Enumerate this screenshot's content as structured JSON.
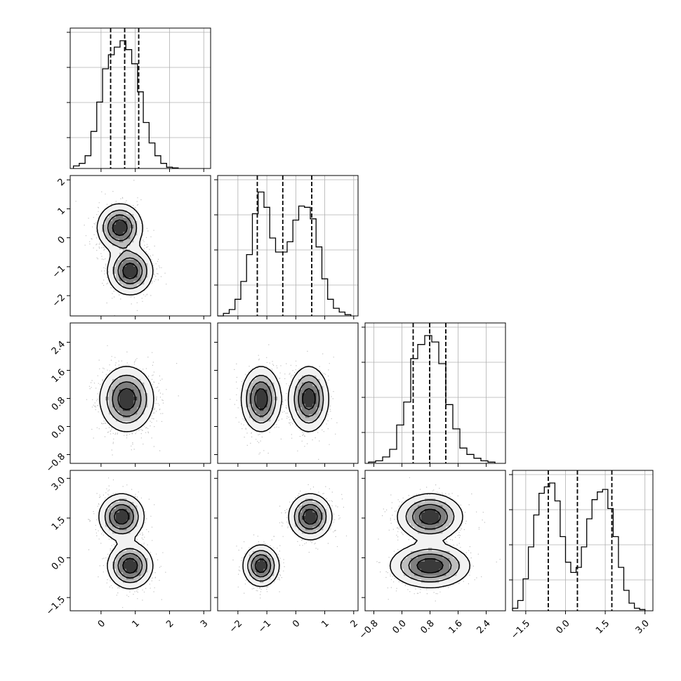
{
  "chart_data": {
    "type": "corner",
    "title": "",
    "n_params": 4,
    "axis_ranges": [
      [
        -0.9,
        3.2
      ],
      [
        -2.7,
        2.15
      ],
      [
        -1.05,
        2.95
      ],
      [
        -2.0,
        3.3
      ]
    ],
    "ticks": [
      {
        "values": [
          0,
          1,
          2,
          3
        ],
        "labels": [
          "0",
          "1",
          "2",
          "3"
        ]
      },
      {
        "values": [
          -2,
          -1,
          0,
          1,
          2
        ],
        "labels": [
          "−2",
          "−1",
          "0",
          "1",
          "2"
        ]
      },
      {
        "values": [
          -0.8,
          0.0,
          0.8,
          1.6,
          2.4
        ],
        "labels": [
          "−0.8",
          "0.0",
          "0.8",
          "1.6",
          "2.4"
        ]
      },
      {
        "values": [
          -1.5,
          0.0,
          1.5,
          3.0
        ],
        "labels": [
          "−1.5",
          "0.0",
          "1.5",
          "3.0"
        ]
      }
    ],
    "grid": true,
    "histograms": [
      {
        "param": 0,
        "quantiles": [
          0.28,
          0.69,
          1.1
        ],
        "bins": [
          [
            -0.72,
            0.02
          ],
          [
            -0.55,
            0.04
          ],
          [
            -0.38,
            0.1
          ],
          [
            -0.21,
            0.29
          ],
          [
            -0.04,
            0.52
          ],
          [
            0.13,
            0.78
          ],
          [
            0.3,
            0.89
          ],
          [
            0.47,
            0.95
          ],
          [
            0.64,
            1.0
          ],
          [
            0.81,
            0.93
          ],
          [
            0.98,
            0.82
          ],
          [
            1.15,
            0.6
          ],
          [
            1.32,
            0.36
          ],
          [
            1.49,
            0.2
          ],
          [
            1.66,
            0.1
          ],
          [
            1.83,
            0.04
          ],
          [
            2.0,
            0.01
          ],
          [
            2.17,
            0.005
          ]
        ]
      },
      {
        "param": 1,
        "quantiles": [
          -1.33,
          -0.45,
          0.55
        ],
        "bins": [
          [
            -2.6,
            0.0
          ],
          [
            -2.4,
            0.02
          ],
          [
            -2.2,
            0.05
          ],
          [
            -2.0,
            0.13
          ],
          [
            -1.8,
            0.27
          ],
          [
            -1.6,
            0.48
          ],
          [
            -1.4,
            0.8
          ],
          [
            -1.2,
            0.97
          ],
          [
            -1.0,
            0.85
          ],
          [
            -0.8,
            0.61
          ],
          [
            -0.6,
            0.5
          ],
          [
            -0.4,
            0.5
          ],
          [
            -0.2,
            0.58
          ],
          [
            0.0,
            0.75
          ],
          [
            0.2,
            0.86
          ],
          [
            0.4,
            0.85
          ],
          [
            0.6,
            0.76
          ],
          [
            0.8,
            0.54
          ],
          [
            1.0,
            0.29
          ],
          [
            1.2,
            0.13
          ],
          [
            1.4,
            0.06
          ],
          [
            1.6,
            0.03
          ],
          [
            1.8,
            0.01
          ]
        ]
      },
      {
        "param": 2,
        "quantiles": [
          0.32,
          0.79,
          1.25
        ],
        "bins": [
          [
            -0.85,
            0.01
          ],
          [
            -0.65,
            0.02
          ],
          [
            -0.45,
            0.05
          ],
          [
            -0.25,
            0.11
          ],
          [
            -0.05,
            0.3
          ],
          [
            0.15,
            0.48
          ],
          [
            0.35,
            0.82
          ],
          [
            0.55,
            0.93
          ],
          [
            0.75,
            1.0
          ],
          [
            0.95,
            0.95
          ],
          [
            1.15,
            0.78
          ],
          [
            1.35,
            0.46
          ],
          [
            1.55,
            0.27
          ],
          [
            1.75,
            0.12
          ],
          [
            1.95,
            0.07
          ],
          [
            2.15,
            0.04
          ],
          [
            2.35,
            0.02
          ],
          [
            2.55,
            0.01
          ]
        ]
      },
      {
        "param": 3,
        "quantiles": [
          -0.65,
          0.45,
          1.75
        ],
        "bins": [
          [
            -1.9,
            0.02
          ],
          [
            -1.7,
            0.08
          ],
          [
            -1.5,
            0.25
          ],
          [
            -1.3,
            0.5
          ],
          [
            -1.1,
            0.75
          ],
          [
            -0.9,
            0.92
          ],
          [
            -0.7,
            0.97
          ],
          [
            -0.5,
            1.0
          ],
          [
            -0.3,
            0.86
          ],
          [
            -0.1,
            0.58
          ],
          [
            0.1,
            0.38
          ],
          [
            0.3,
            0.3
          ],
          [
            0.5,
            0.34
          ],
          [
            0.7,
            0.5
          ],
          [
            0.9,
            0.72
          ],
          [
            1.1,
            0.87
          ],
          [
            1.3,
            0.93
          ],
          [
            1.5,
            0.95
          ],
          [
            1.7,
            0.8
          ],
          [
            1.9,
            0.58
          ],
          [
            2.1,
            0.34
          ],
          [
            2.3,
            0.16
          ],
          [
            2.5,
            0.06
          ],
          [
            2.7,
            0.02
          ],
          [
            2.9,
            0.01
          ]
        ]
      }
    ],
    "joint": [
      {
        "x": 0,
        "y": 1,
        "modes": [
          {
            "mx": 0.55,
            "my": 0.35,
            "sx": 0.32,
            "sy": 0.4,
            "w": 0.5
          },
          {
            "mx": 0.85,
            "my": -1.15,
            "sx": 0.32,
            "sy": 0.4,
            "w": 0.5
          }
        ]
      },
      {
        "x": 0,
        "y": 2,
        "modes": [
          {
            "mx": 0.75,
            "my": 0.78,
            "sx": 0.38,
            "sy": 0.45,
            "w": 1.0
          }
        ]
      },
      {
        "x": 1,
        "y": 2,
        "modes": [
          {
            "mx": -1.2,
            "my": 0.78,
            "sx": 0.33,
            "sy": 0.45,
            "w": 0.5
          },
          {
            "mx": 0.45,
            "my": 0.78,
            "sx": 0.33,
            "sy": 0.45,
            "w": 0.5
          }
        ]
      },
      {
        "x": 0,
        "y": 3,
        "modes": [
          {
            "mx": 0.6,
            "my": 1.55,
            "sx": 0.32,
            "sy": 0.42,
            "w": 0.5
          },
          {
            "mx": 0.85,
            "my": -0.3,
            "sx": 0.32,
            "sy": 0.42,
            "w": 0.5
          }
        ]
      },
      {
        "x": 1,
        "y": 3,
        "modes": [
          {
            "mx": 0.5,
            "my": 1.55,
            "sx": 0.36,
            "sy": 0.42,
            "w": 0.5
          },
          {
            "mx": -1.2,
            "my": -0.3,
            "sx": 0.3,
            "sy": 0.38,
            "w": 0.5
          }
        ]
      },
      {
        "x": 2,
        "y": 3,
        "modes": [
          {
            "mx": 0.8,
            "my": 1.55,
            "sx": 0.45,
            "sy": 0.42,
            "w": 0.5
          },
          {
            "mx": 0.8,
            "my": -0.3,
            "sx": 0.55,
            "sy": 0.4,
            "w": 0.5
          }
        ]
      }
    ],
    "contour_levels": [
      0.12,
      0.32,
      0.55,
      0.8
    ]
  }
}
